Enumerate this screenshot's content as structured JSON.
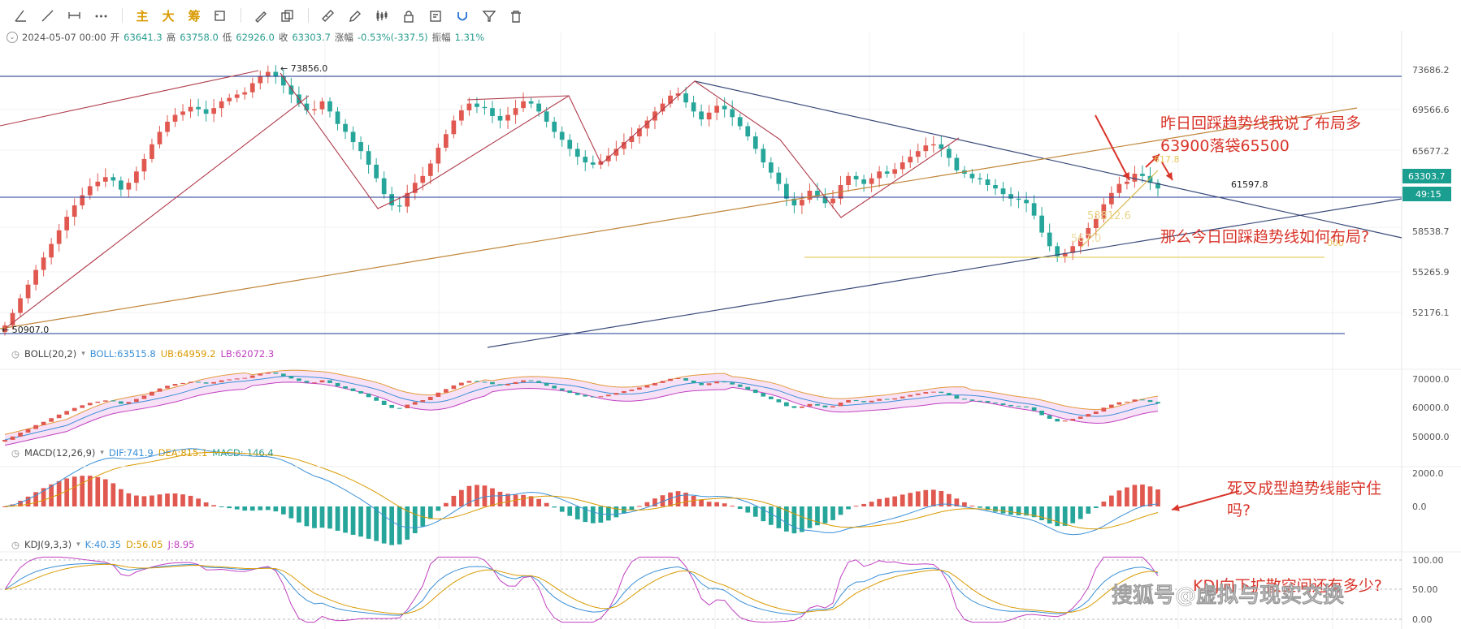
{
  "toolbar": {
    "tools": [
      {
        "name": "trend-angle-icon",
        "glyph": "angle"
      },
      {
        "name": "line-tool-icon",
        "glyph": "line"
      },
      {
        "name": "horizontal-ray-icon",
        "glyph": "hray"
      },
      {
        "name": "more-tools-icon",
        "glyph": "dots"
      }
    ],
    "text_buttons": [
      "主",
      "大",
      "筹"
    ],
    "tools2": [
      {
        "name": "measure-icon",
        "glyph": "measure"
      },
      {
        "name": "brush-icon",
        "glyph": "brush"
      },
      {
        "name": "copy-icon",
        "glyph": "copy"
      },
      {
        "name": "ruler-icon",
        "glyph": "ruler"
      },
      {
        "name": "pen-icon",
        "glyph": "pen"
      },
      {
        "name": "candles-icon",
        "glyph": "candles"
      },
      {
        "name": "lock-icon",
        "glyph": "lock"
      },
      {
        "name": "note-icon",
        "glyph": "note"
      },
      {
        "name": "magnet-icon",
        "glyph": "magnet"
      },
      {
        "name": "filter-icon",
        "glyph": "filter"
      },
      {
        "name": "trash-icon",
        "glyph": "trash"
      }
    ]
  },
  "ohlc": {
    "date": "2024-05-07 00:00",
    "open_label": "开",
    "open": "63641.3",
    "high_label": "高",
    "high": "63758.0",
    "low_label": "低",
    "low": "62926.0",
    "close_label": "收",
    "close": "63303.7",
    "change_label": "涨幅",
    "change": "-0.53%(-337.5)",
    "amp_label": "振幅",
    "amp": "1.31%"
  },
  "indicators": {
    "boll": {
      "name": "BOLL(20,2)",
      "mid": "BOLL:63515.8",
      "ub": "UB:64959.2",
      "lb": "LB:62072.3"
    },
    "macd": {
      "name": "MACD(12,26,9)",
      "dif": "DIF:741.9",
      "dea": "DEA:815.1",
      "macd": "MACD:-146.4"
    },
    "kdj": {
      "name": "KDJ(9,3,3)",
      "k": "K:40.35",
      "d": "D:56.05",
      "j": "J:8.95"
    }
  },
  "colors": {
    "up": "#e0584f",
    "down": "#26a69a",
    "bg": "#ffffff",
    "grid": "#f1f1f1",
    "accent": "#d99a00",
    "annotation": "#d9352a",
    "hline": "#1f3a93"
  },
  "price_axis": {
    "ticks": [
      "73686.2",
      "69566.6",
      "65677.2",
      "58538.7",
      "55265.9",
      "52176.1"
    ],
    "current_price": "63303.7",
    "countdown": "49:15"
  },
  "labels": {
    "peak": "73856.0",
    "trough": "50907.0",
    "level": "61597.8",
    "faded_1": "617.8",
    "faded_2": "58812.6",
    "faded_3": "567.0",
    "faded_4": "000"
  },
  "annotations": {
    "a1": "昨日回踩趋势线我说了布局多",
    "a2": "63900落袋65500",
    "a3": "那么今日回踩趋势线如何布局?",
    "a4": "死叉成型趋势线能守住",
    "a5": "吗?",
    "a6": "KDJ向下扩散空间还有多少?"
  },
  "watermark": "搜狐号@虚拟与现实交换",
  "boll_axis": [
    "70000.0",
    "60000.0",
    "50000.0"
  ],
  "macd_axis": [
    "2000.0",
    "0.0"
  ],
  "kdj_axis": [
    "100.00",
    "50.00",
    "0.00"
  ],
  "chart_data": {
    "type": "candlestick",
    "series_close": [
      51200,
      52300,
      53600,
      54800,
      56100,
      57200,
      58400,
      59600,
      60800,
      61800,
      62700,
      63500,
      63900,
      64300,
      64000,
      63200,
      63800,
      64800,
      65900,
      67200,
      68300,
      69200,
      69800,
      70100,
      70500,
      70300,
      69900,
      70400,
      71000,
      71300,
      71600,
      71800,
      72600,
      73200,
      73600,
      73200,
      72400,
      71600,
      70800,
      70200,
      70300,
      71000,
      70100,
      69000,
      68300,
      67400,
      66600,
      65400,
      64200,
      62800,
      61800,
      61700,
      62900,
      63800,
      64400,
      65500,
      66900,
      68100,
      69300,
      70200,
      70800,
      70500,
      70400,
      69700,
      69300,
      69800,
      70400,
      71000,
      70800,
      70100,
      69200,
      68300,
      67600,
      66800,
      66100,
      65600,
      65400,
      65700,
      66200,
      66800,
      67400,
      67900,
      68600,
      69300,
      70100,
      70800,
      71500,
      71700,
      70900,
      70100,
      69400,
      70000,
      70600,
      70300,
      69600,
      68800,
      67900,
      66800,
      65600,
      64700,
      63700,
      62400,
      61800,
      62300,
      63100,
      62600,
      62000,
      62400,
      63600,
      64400,
      64100,
      63700,
      64200,
      64800,
      64600,
      65000,
      65600,
      66100,
      66600,
      67100,
      67200,
      66800,
      66000,
      64900,
      64600,
      64200,
      64100,
      63600,
      63300,
      62800,
      62400,
      62300,
      62000,
      60900,
      59400,
      58200,
      57300,
      57600,
      58200,
      58900,
      59800,
      60600,
      61900,
      62900,
      63700,
      63900,
      64600,
      64400,
      63800,
      63300
    ]
  }
}
